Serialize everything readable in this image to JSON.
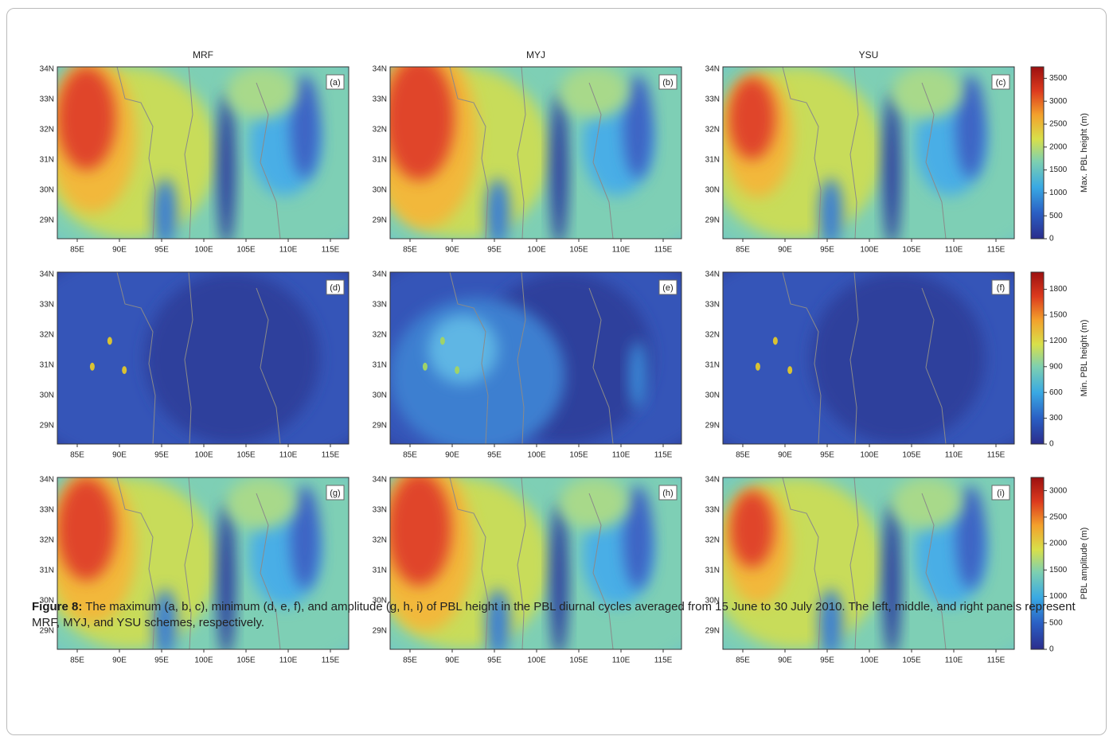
{
  "columns": [
    "MRF",
    "MYJ",
    "YSU"
  ],
  "panels": [
    "(a)",
    "(b)",
    "(c)",
    "(d)",
    "(e)",
    "(f)",
    "(g)",
    "(h)",
    "(i)"
  ],
  "lat_ticks": [
    "34N",
    "33N",
    "32N",
    "31N",
    "30N",
    "29N"
  ],
  "lon_ticks": [
    "85E",
    "90E",
    "95E",
    "100E",
    "105E",
    "110E",
    "115E"
  ],
  "colorbars": [
    {
      "title": "Max. PBL height (m)",
      "lim": [
        0,
        3750
      ],
      "ticks": [
        0,
        500,
        1000,
        1500,
        2000,
        2500,
        3000,
        3500
      ]
    },
    {
      "title": "Min. PBL height (m)",
      "lim": [
        0,
        2000
      ],
      "ticks": [
        0,
        300,
        600,
        900,
        1200,
        1500,
        1800
      ]
    },
    {
      "title": "PBL amplitude (m)",
      "lim": [
        0,
        3250
      ],
      "ticks": [
        0,
        500,
        1000,
        1500,
        2000,
        2500,
        3000
      ]
    }
  ],
  "caption": {
    "label": "Figure 8:",
    "text": "The maximum (a, b, c), minimum (d, e, f), and amplitude (g, h, i) of PBL height in the PBL diurnal cycles averaged from 15 June to 30 July 2010. The left, middle, and right panels represent MRF, MYJ, and YSU schemes, respectively."
  }
}
